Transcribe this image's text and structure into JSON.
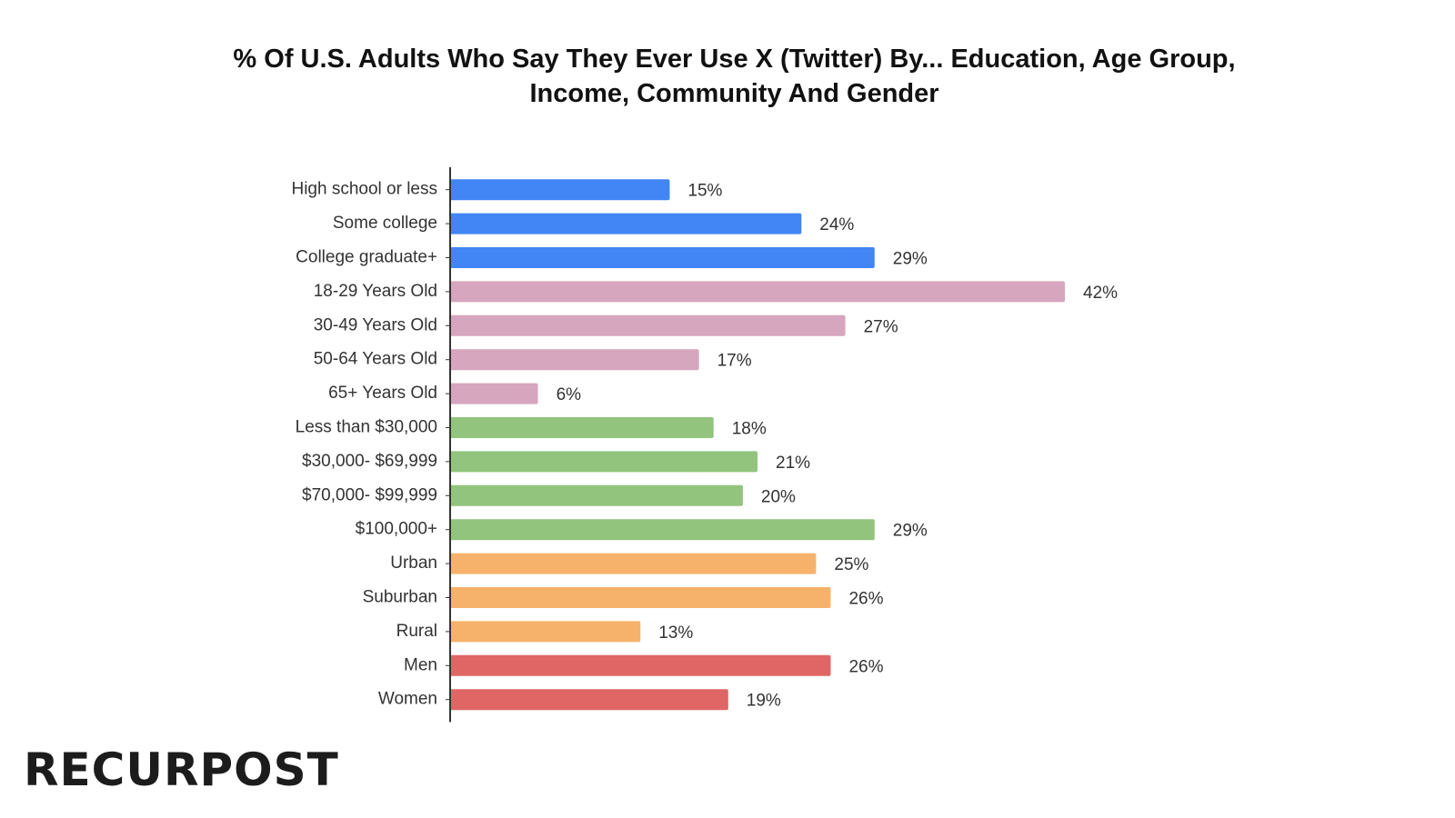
{
  "chart_data": {
    "type": "bar",
    "orientation": "horizontal",
    "title": "% Of U.S. Adults Who Say They Ever Use X (Twitter) By... Education, Age Group, Income, Community And Gender",
    "categories": [
      "High school or less",
      "Some college",
      "College graduate+",
      "18-29 Years Old",
      "30-49 Years Old",
      "50-64 Years Old",
      "65+ Years Old",
      "Less than $30,000",
      "$30,000- $69,999",
      "$70,000- $99,999",
      "$100,000+",
      "Urban",
      "Suburban",
      "Rural",
      "Men",
      "Women"
    ],
    "values": [
      15,
      24,
      29,
      42,
      27,
      17,
      6,
      18,
      21,
      20,
      29,
      25,
      26,
      13,
      26,
      19
    ],
    "value_labels": [
      "15%",
      "24%",
      "29%",
      "42%",
      "27%",
      "17%",
      "6%",
      "18%",
      "21%",
      "20%",
      "29%",
      "25%",
      "26%",
      "13%",
      "26%",
      "19%"
    ],
    "colors": [
      "#4285f4",
      "#4285f4",
      "#4285f4",
      "#d5a6bd",
      "#d5a6bd",
      "#d5a6bd",
      "#d5a6bd",
      "#93c47d",
      "#93c47d",
      "#93c47d",
      "#93c47d",
      "#f6b26b",
      "#f6b26b",
      "#f6b26b",
      "#e06666",
      "#e06666"
    ]
  },
  "logo": "RECURPOST"
}
